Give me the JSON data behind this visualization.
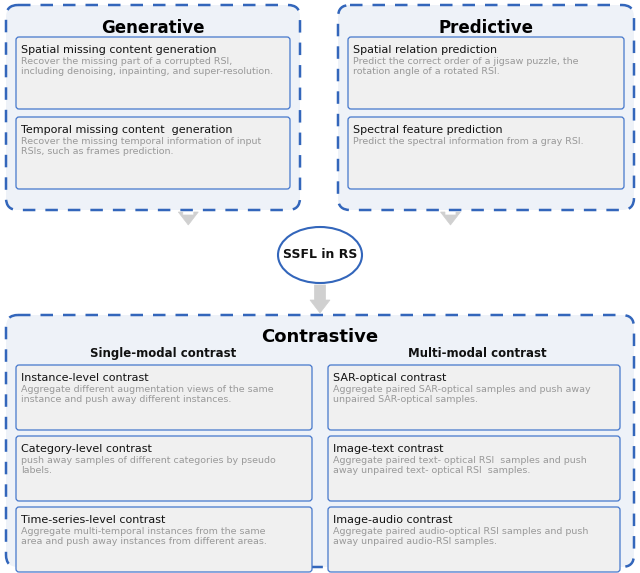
{
  "background_color": "#ffffff",
  "border_color": "#3366bb",
  "outer_box_bg": "#eef2f8",
  "inner_box_bg": "#f0f0f0",
  "inner_box_border": "#4477cc",
  "arrow_color": "#cccccc",
  "title_color": "#000000",
  "dark_text": "#111111",
  "gray_text": "#999999",
  "generative_title": "Generative",
  "generative_boxes": [
    {
      "title": "Spatial missing content generation",
      "desc": "Recover the missing part of a corrupted RSI,\nincluding denoising, inpainting, and super-resolution."
    },
    {
      "title": "Temporal missing content  generation",
      "desc": "Recover the missing temporal information of input\nRSIs, such as frames prediction."
    }
  ],
  "predictive_title": "Predictive",
  "predictive_boxes": [
    {
      "title": "Spatial relation prediction",
      "desc": "Predict the correct order of a jigsaw puzzle, the\nrotation angle of a rotated RSI."
    },
    {
      "title": "Spectral feature prediction",
      "desc": "Predict the spectral information from a gray RSI."
    }
  ],
  "center_text": "SSFL in RS",
  "contrastive_title": "Contrastive",
  "single_modal_title": "Single-modal contrast",
  "multi_modal_title": "Multi-modal contrast",
  "single_modal_boxes": [
    {
      "title": "Instance-level contrast",
      "desc": "Aggregate different augmentation views of the same\ninstance and push away different instances."
    },
    {
      "title": "Category-level contrast",
      "desc": "push away samples of different categories by pseudo\nlabels."
    },
    {
      "title": "Time-series-level contrast",
      "desc": "Aggregate multi-temporal instances from the same\narea and push away instances from different areas."
    }
  ],
  "multi_modal_boxes": [
    {
      "title": "SAR-optical contrast",
      "desc": "Aggregate paired SAR-optical samples and push away\nunpaired SAR-optical samples."
    },
    {
      "title": "Image-text contrast",
      "desc": "Aggregate paired text- optical RSI  samples and push\naway unpaired text- optical RSI  samples."
    },
    {
      "title": "Image-audio contrast",
      "desc": "Aggregate paired audio-optical RSI samples and push\naway unpaired audio-RSI samples."
    }
  ]
}
